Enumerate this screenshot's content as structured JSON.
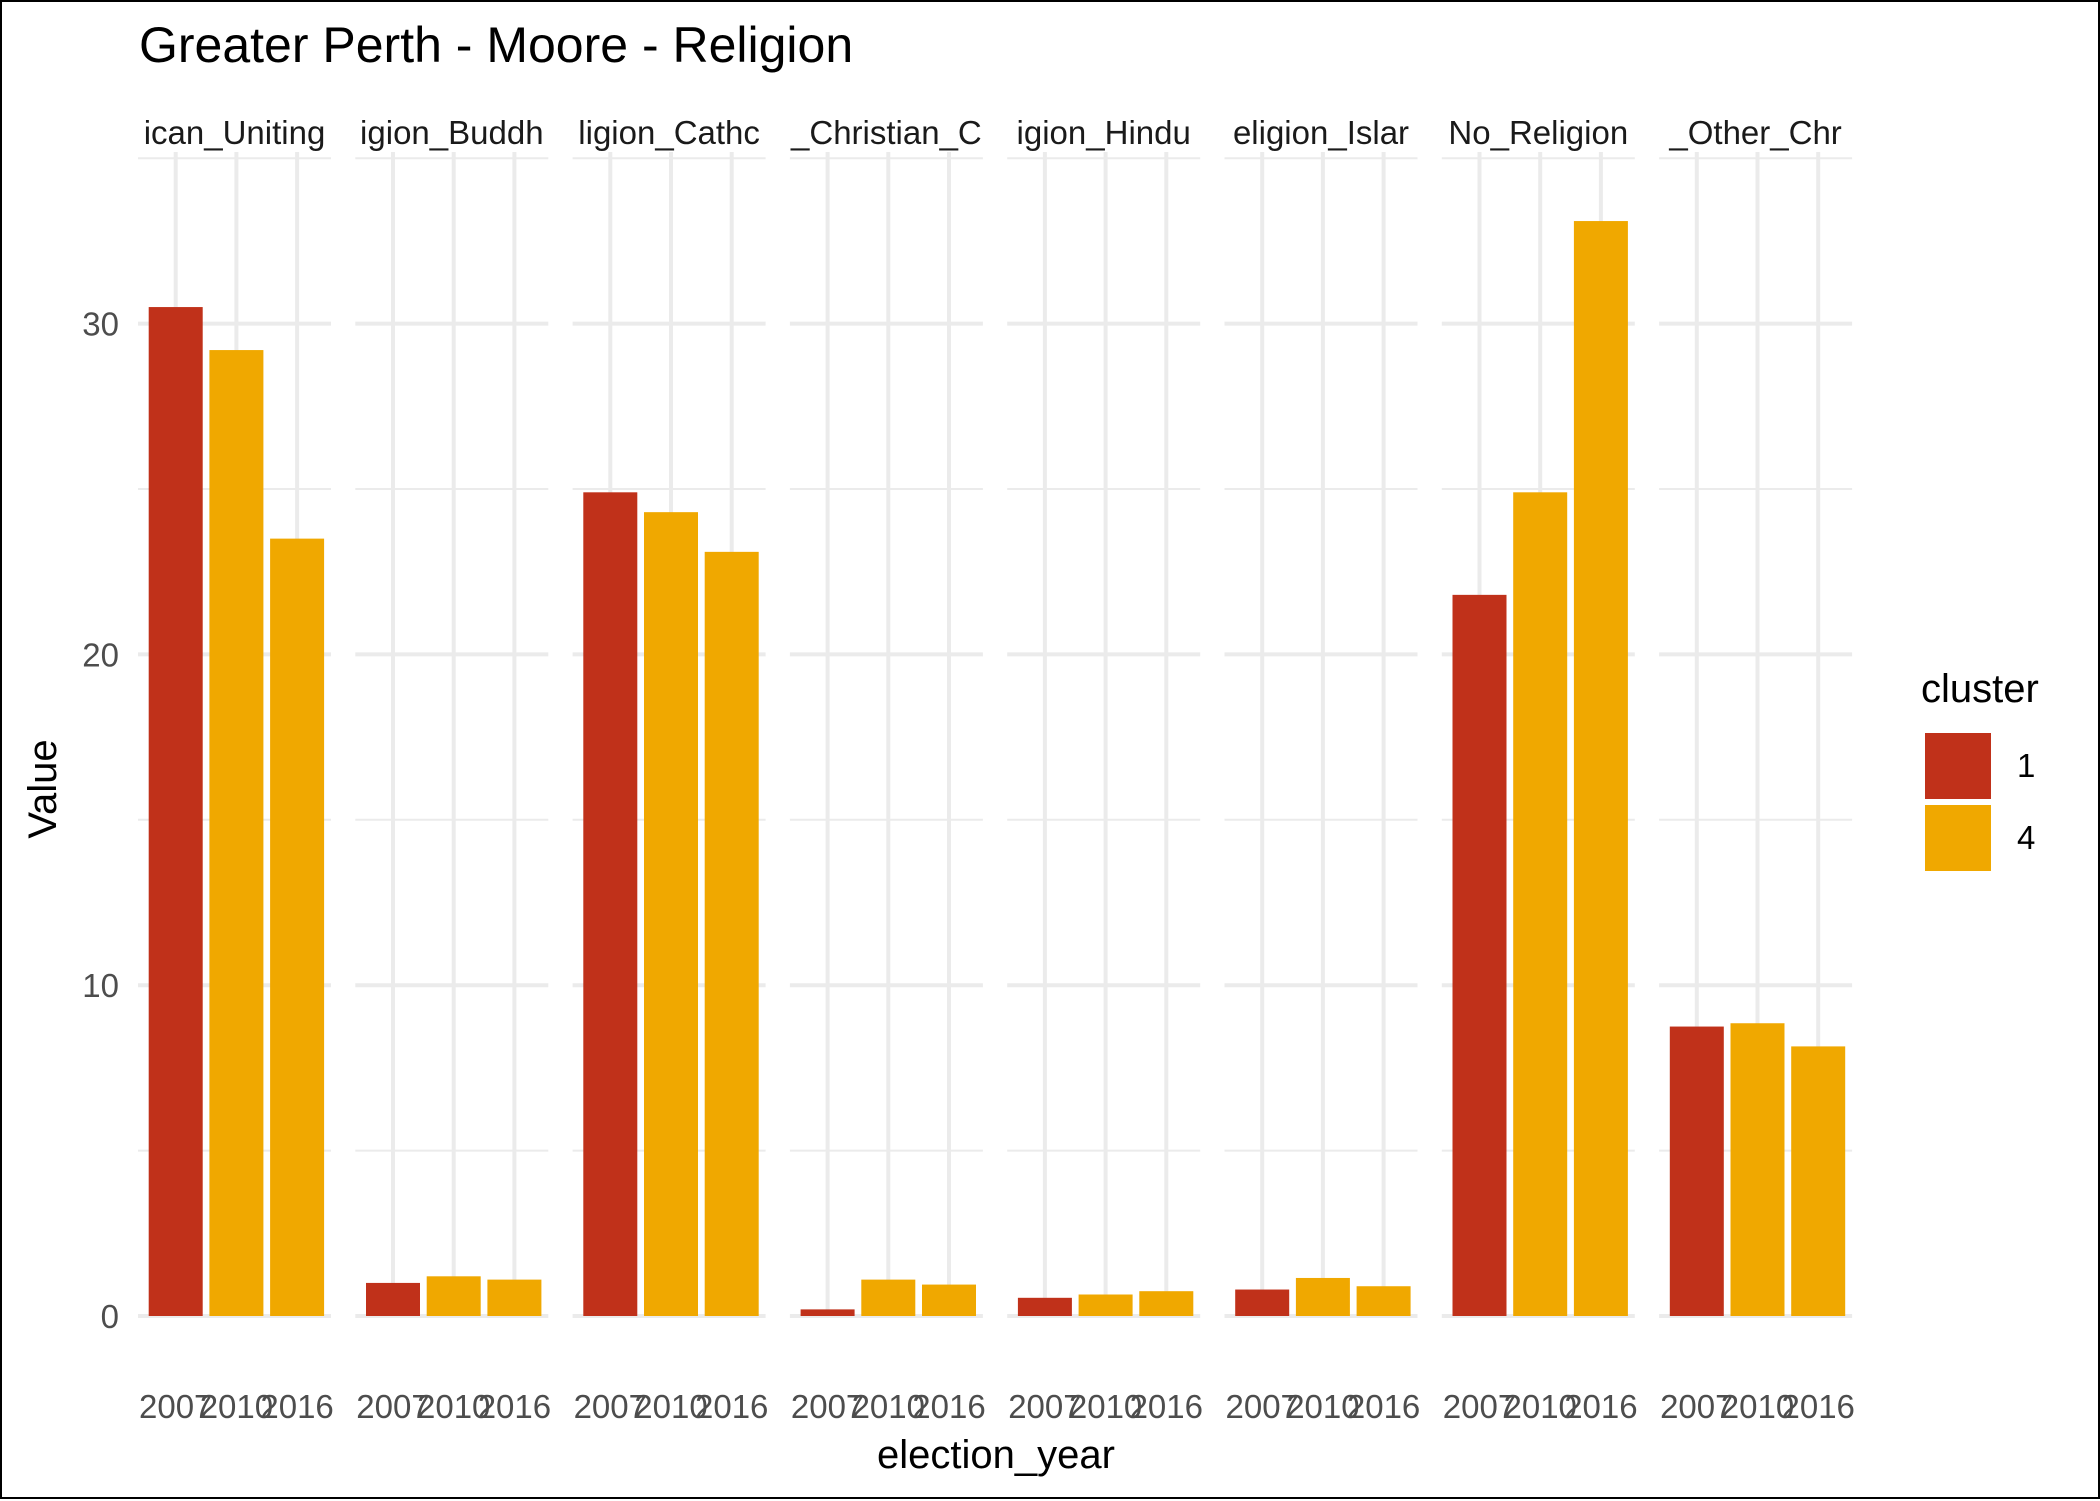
{
  "chart_data": {
    "type": "bar",
    "title": "Greater Perth - Moore - Religion",
    "xlabel": "election_year",
    "ylabel": "Value",
    "ylim": [
      0,
      35
    ],
    "y_ticks": [
      0,
      10,
      20,
      30
    ],
    "grid": true,
    "legend": {
      "title": "cluster",
      "placement": "right",
      "entries": [
        {
          "label": "1",
          "color": "#C0311A"
        },
        {
          "label": "4",
          "color": "#F0A800"
        }
      ]
    },
    "x": [
      "2007",
      "2010",
      "2016"
    ],
    "x_tick_labels": [
      "2007",
      "2010",
      "2016"
    ],
    "facets": [
      {
        "strip": "ican_Uniting",
        "bars": [
          {
            "x": "2007",
            "cluster": "1",
            "value": 30.5
          },
          {
            "x": "2010",
            "cluster": "4",
            "value": 29.2
          },
          {
            "x": "2016",
            "cluster": "4",
            "value": 23.5
          }
        ]
      },
      {
        "strip": "igion_Buddh",
        "bars": [
          {
            "x": "2007",
            "cluster": "1",
            "value": 1.0
          },
          {
            "x": "2010",
            "cluster": "4",
            "value": 1.2
          },
          {
            "x": "2016",
            "cluster": "4",
            "value": 1.1
          }
        ]
      },
      {
        "strip": "ligion_Cathc",
        "bars": [
          {
            "x": "2007",
            "cluster": "1",
            "value": 24.9
          },
          {
            "x": "2010",
            "cluster": "4",
            "value": 24.3
          },
          {
            "x": "2016",
            "cluster": "4",
            "value": 23.1
          }
        ]
      },
      {
        "strip": "_Christian_C",
        "bars": [
          {
            "x": "2007",
            "cluster": "1",
            "value": 0.2
          },
          {
            "x": "2010",
            "cluster": "4",
            "value": 1.1
          },
          {
            "x": "2016",
            "cluster": "4",
            "value": 0.95
          }
        ]
      },
      {
        "strip": "igion_Hindu",
        "bars": [
          {
            "x": "2007",
            "cluster": "1",
            "value": 0.55
          },
          {
            "x": "2010",
            "cluster": "4",
            "value": 0.65
          },
          {
            "x": "2016",
            "cluster": "4",
            "value": 0.75
          }
        ]
      },
      {
        "strip": "eligion_Islar",
        "bars": [
          {
            "x": "2007",
            "cluster": "1",
            "value": 0.8
          },
          {
            "x": "2010",
            "cluster": "4",
            "value": 1.15
          },
          {
            "x": "2016",
            "cluster": "4",
            "value": 0.9
          }
        ]
      },
      {
        "strip": "No_Religion",
        "bars": [
          {
            "x": "2007",
            "cluster": "1",
            "value": 21.8
          },
          {
            "x": "2010",
            "cluster": "4",
            "value": 24.9
          },
          {
            "x": "2016",
            "cluster": "4",
            "value": 33.1
          }
        ]
      },
      {
        "strip": "_Other_Chr",
        "bars": [
          {
            "x": "2007",
            "cluster": "1",
            "value": 8.75
          },
          {
            "x": "2010",
            "cluster": "4",
            "value": 8.85
          },
          {
            "x": "2016",
            "cluster": "4",
            "value": 8.15
          }
        ]
      }
    ]
  }
}
